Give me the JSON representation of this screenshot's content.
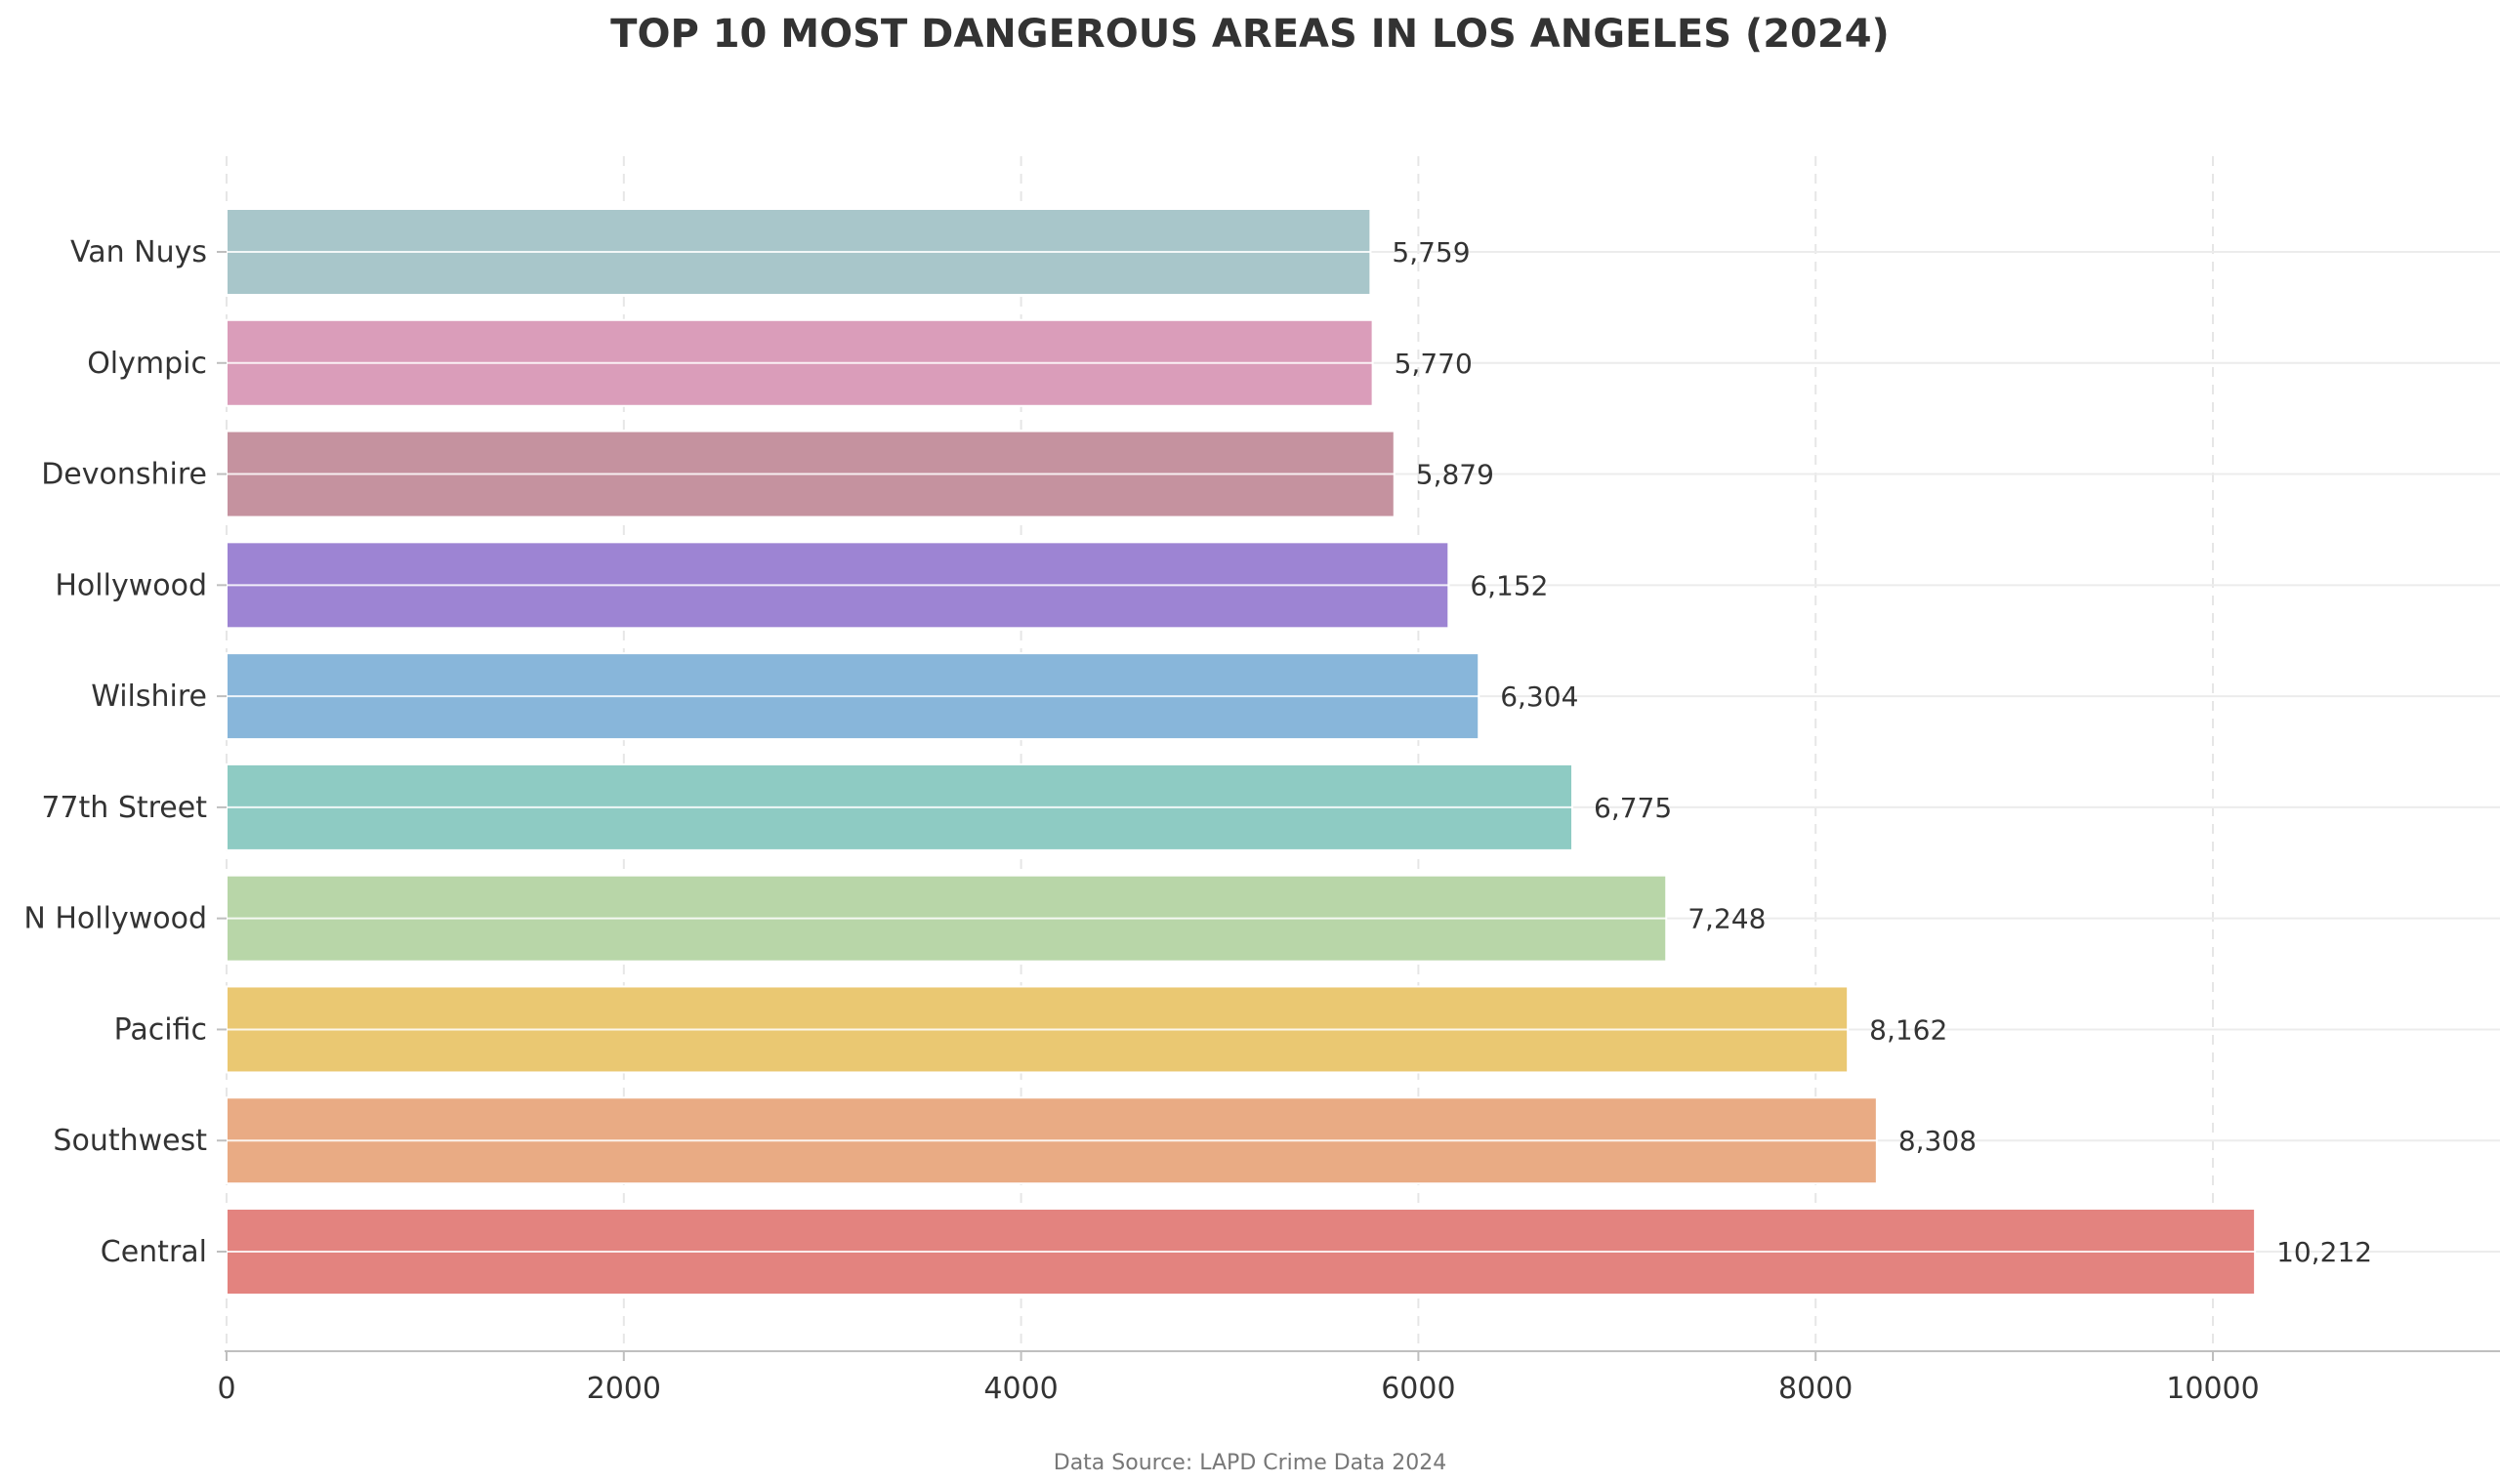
{
  "chart_data": {
    "type": "bar",
    "orientation": "horizontal",
    "title": "TOP 10 MOST DANGEROUS AREAS IN LOS ANGELES (2024)",
    "categories": [
      "Central",
      "Southwest",
      "Pacific",
      "N Hollywood",
      "77th Street",
      "Wilshire",
      "Hollywood",
      "Devonshire",
      "Olympic",
      "Van Nuys"
    ],
    "values": [
      10212,
      8308,
      8162,
      7248,
      6775,
      6304,
      6152,
      5879,
      5770,
      5759
    ],
    "value_labels": [
      "10,212",
      "8,308",
      "8,162",
      "7,248",
      "6,775",
      "6,304",
      "6,152",
      "5,879",
      "5,770",
      "5,759"
    ],
    "colors": [
      "#E3837F",
      "#E9AB84",
      "#EAC872",
      "#B8D6A8",
      "#8ECBC3",
      "#88B6DA",
      "#9D84D3",
      "#C5929F",
      "#DA9DBA",
      "#A8C6CA"
    ],
    "xticks": [
      "0",
      "2000",
      "4000",
      "6000",
      "8000",
      "10000"
    ],
    "xlim": [
      0,
      11450
    ],
    "grid": true,
    "source": "Data Source: LAPD Crime Data 2024"
  }
}
